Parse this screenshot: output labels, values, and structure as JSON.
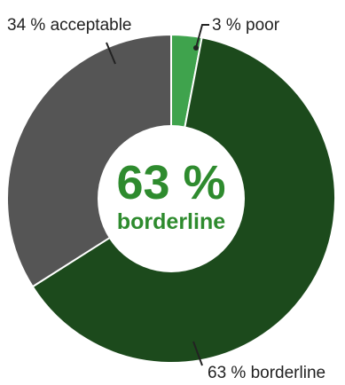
{
  "chart_data": {
    "type": "pie",
    "categories": [
      "poor",
      "borderline",
      "acceptable"
    ],
    "values": [
      3,
      63,
      34
    ],
    "unit": "%",
    "slice_labels": [
      "3 % poor",
      "63 % borderline",
      "34 % acceptable"
    ],
    "center": {
      "value": "63 %",
      "label": "borderline"
    },
    "colors": [
      "#3fa34d",
      "#1c4a1c",
      "#555555"
    ],
    "center_text_color": "#2e8b2e",
    "legend": "none",
    "grid": false
  }
}
